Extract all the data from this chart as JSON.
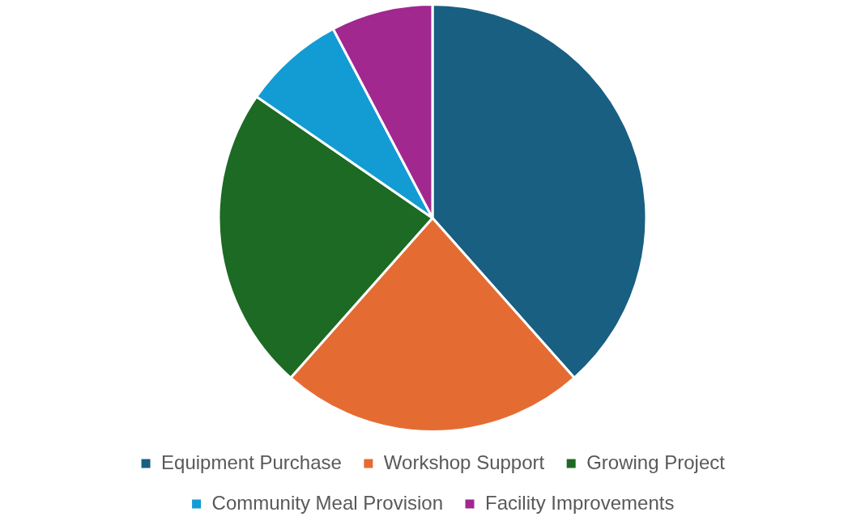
{
  "chart_data": {
    "type": "pie",
    "categories": [
      "Equipment Purchase",
      "Workshop Support",
      "Growing Project",
      "Community Meal Provision",
      "Facility Improvements"
    ],
    "values": [
      38.46,
      23.08,
      23.08,
      7.69,
      7.69
    ],
    "colors": [
      "#185f82",
      "#e46c33",
      "#1c6a23",
      "#139bd3",
      "#a0288f"
    ],
    "legend": "bottom"
  }
}
